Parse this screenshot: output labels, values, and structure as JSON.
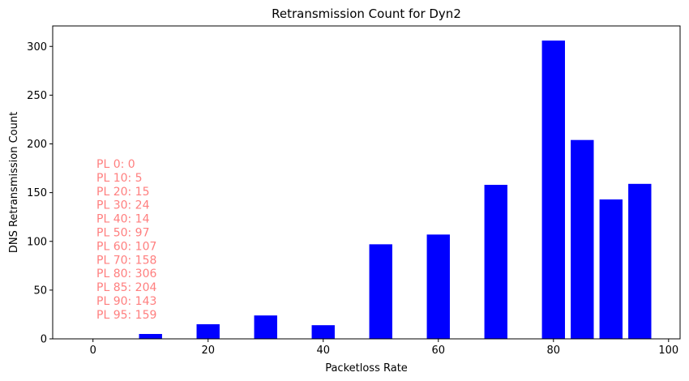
{
  "chart_data": {
    "type": "bar",
    "title": "Retransmission Count for Dyn2",
    "xlabel": "Packetloss Rate",
    "ylabel": "DNS Retransmission Count",
    "x": [
      0,
      10,
      20,
      30,
      40,
      50,
      60,
      70,
      80,
      85,
      90,
      95
    ],
    "values": [
      0,
      5,
      15,
      24,
      14,
      97,
      107,
      158,
      306,
      204,
      143,
      159
    ],
    "bar_width": 4,
    "xlim": [
      -7,
      102
    ],
    "ylim": [
      0,
      321
    ],
    "xticks": [
      0,
      20,
      40,
      60,
      80,
      100
    ],
    "yticks": [
      0,
      50,
      100,
      150,
      200,
      250,
      300
    ],
    "bar_color": "#0000ff",
    "grid": false,
    "annotations": [
      "PL 0: 0",
      "PL 10: 5",
      "PL 20: 15",
      "PL 30: 24",
      "PL 40: 14",
      "PL 50: 97",
      "PL 60: 107",
      "PL 70: 158",
      "PL 80: 306",
      "PL 85: 204",
      "PL 90: 143",
      "PL 95: 159"
    ],
    "annotation_color": "#ff7f7f"
  }
}
